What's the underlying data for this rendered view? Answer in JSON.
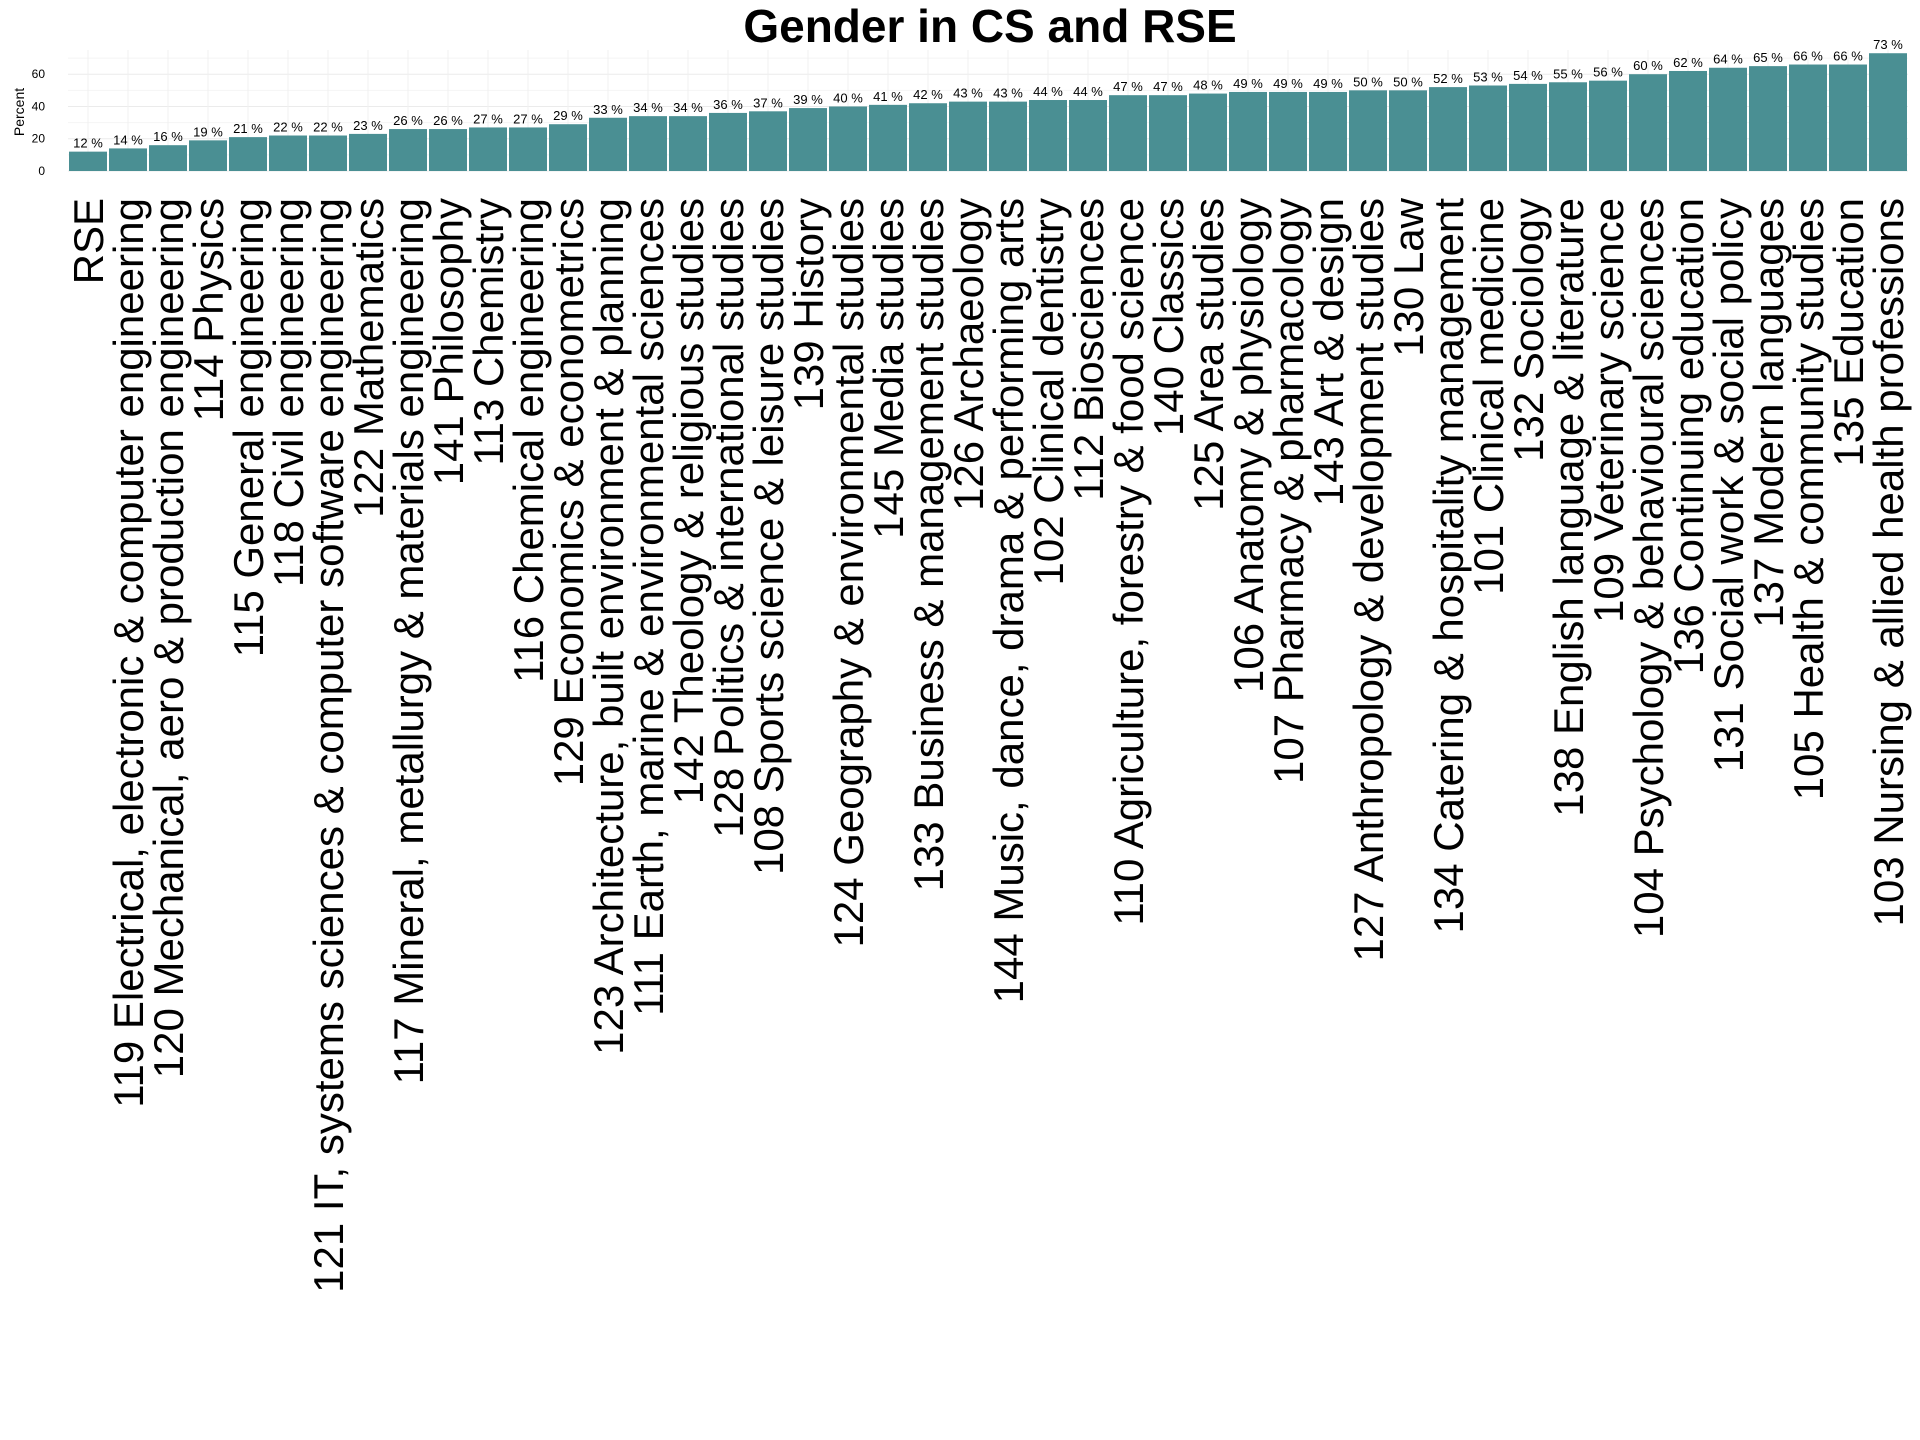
{
  "chart_data": {
    "type": "bar",
    "title": "Gender in CS and RSE",
    "xlabel": "",
    "ylabel": "Percent",
    "ylim": [
      0,
      75
    ],
    "yticks": [
      0,
      20,
      40,
      60
    ],
    "grid": true,
    "bar_color": "#4a8f93",
    "value_suffix": " %",
    "categories": [
      "RSE",
      "119 Electrical, electronic & computer engineering",
      "120 Mechanical, aero & production engineering",
      "114 Physics",
      "115 General engineering",
      "118 Civil engineering",
      "121 IT, systems sciences & computer software engineering",
      "122 Mathematics",
      "117 Mineral, metallurgy & materials engineering",
      "141 Philosophy",
      "113 Chemistry",
      "116 Chemical engineering",
      "129 Economics & econometrics",
      "123 Architecture, built environment & planning",
      "111 Earth, marine & environmental sciences",
      "142 Theology & religious studies",
      "128 Politics & international studies",
      "108 Sports science & leisure studies",
      "139 History",
      "124 Geography & environmental studies",
      "145 Media studies",
      "133 Business & management studies",
      "126 Archaeology",
      "144 Music, dance, drama & performing arts",
      "102 Clinical dentistry",
      "112 Biosciences",
      "110 Agriculture, forestry & food science",
      "140 Classics",
      "125 Area studies",
      "106 Anatomy & physiology",
      "107 Pharmacy & pharmacology",
      "143 Art & design",
      "127 Anthropology & development studies",
      "130 Law",
      "134 Catering & hospitality management",
      "101 Clinical medicine",
      "132 Sociology",
      "138 English language & literature",
      "109 Veterinary science",
      "104 Psychology & behavioural sciences",
      "136 Continuing education",
      "131 Social work & social policy",
      "137 Modern languages",
      "105 Health & community studies",
      "135 Education",
      "103 Nursing & allied health professions"
    ],
    "values": [
      12,
      14,
      16,
      19,
      21,
      22,
      22,
      23,
      26,
      26,
      27,
      27,
      29,
      33,
      34,
      34,
      36,
      37,
      39,
      40,
      41,
      42,
      43,
      43,
      44,
      44,
      47,
      47,
      48,
      49,
      49,
      49,
      50,
      50,
      52,
      53,
      54,
      55,
      56,
      60,
      62,
      64,
      65,
      66,
      66,
      73
    ]
  }
}
